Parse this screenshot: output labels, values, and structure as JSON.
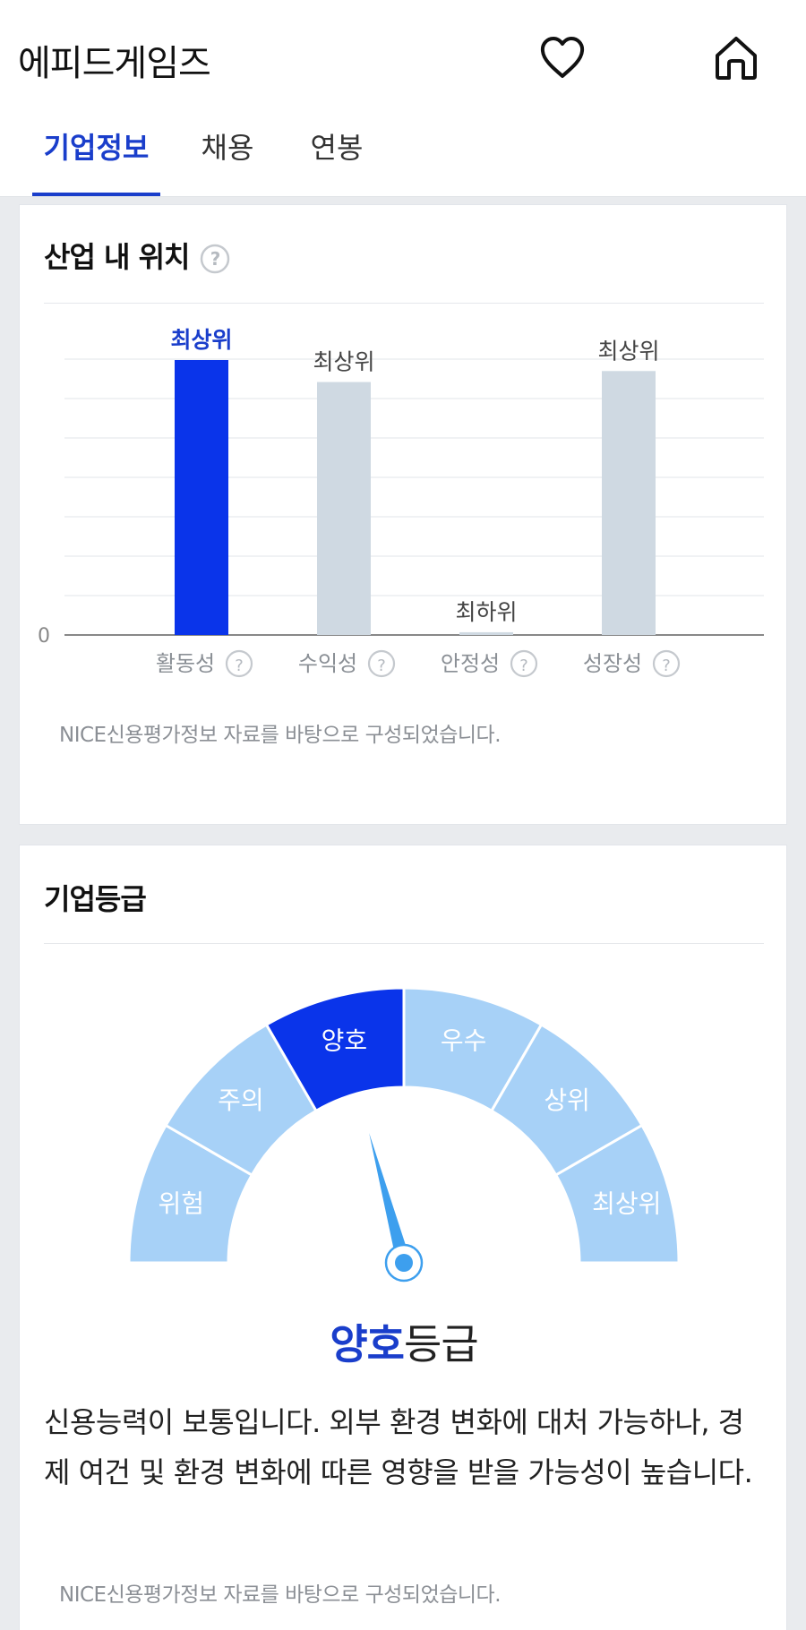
{
  "header": {
    "company_name": "에피드게임즈",
    "icons": [
      "heart-icon",
      "home-icon"
    ]
  },
  "tabs": [
    {
      "label": "기업정보",
      "active": true
    },
    {
      "label": "채용",
      "active": false
    },
    {
      "label": "연봉",
      "active": false
    }
  ],
  "industry_position": {
    "title": "산업 내 위치",
    "footnote": "NICE신용평가정보 자료를 바탕으로 구성되었습니다.",
    "chart_data": {
      "type": "bar",
      "categories": [
        "활동성",
        "수익성",
        "안정성",
        "성장성"
      ],
      "values": [
        100,
        92,
        1,
        96
      ],
      "value_labels": [
        "최상위",
        "최상위",
        "최하위",
        "최상위"
      ],
      "y_tick_labels": [
        "0"
      ],
      "ylim": [
        0,
        100
      ],
      "grid": true,
      "highlight_index": 0,
      "colors": {
        "highlight": "#0a34ea",
        "default": "#cfd9e2",
        "highlight_label": "#1a3ecb",
        "default_label": "#444444"
      }
    }
  },
  "company_grade": {
    "title": "기업등급",
    "gauge": {
      "segments": [
        "위험",
        "주의",
        "양호",
        "우수",
        "상위",
        "최상위"
      ],
      "active_index": 2,
      "colors": {
        "active": "#0a34ea",
        "inactive": "#a7d1f7",
        "needle": "#3d9fee"
      }
    },
    "result_grade": "양호",
    "result_suffix": "등급",
    "description": "신용능력이 보통입니다. 외부 환경 변화에 대처 가능하나, 경제 여건 및 환경 변화에 따른 영향을 받을 가능성이 높습니다.",
    "footnote": "NICE신용평가정보 자료를 바탕으로 구성되었습니다."
  }
}
